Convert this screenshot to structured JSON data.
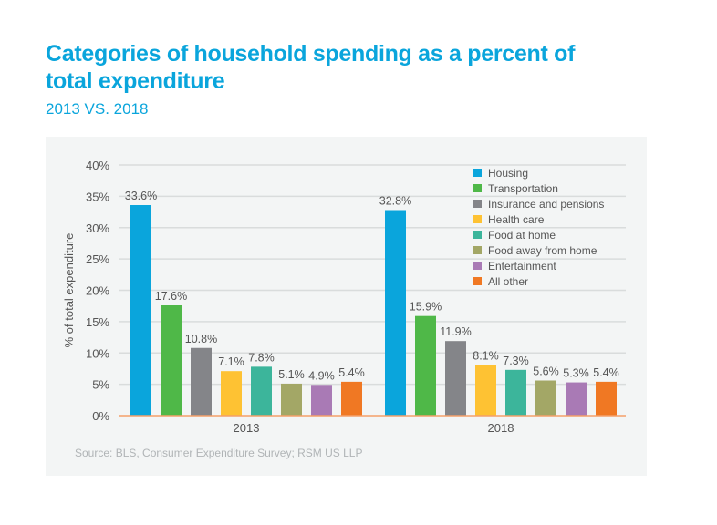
{
  "title": "Categories of household spending as a percent of total expenditure",
  "subtitle": "2013 VS. 2018",
  "source": "Source: BLS, Consumer Expenditure Survey; RSM US LLP",
  "chart_data": {
    "type": "bar",
    "title": "Categories of household spending as a percent of total expenditure",
    "subtitle": "2013 VS. 2018",
    "ylabel": "% of total expenditure",
    "xlabel": "",
    "ylim": [
      0,
      40
    ],
    "yticks": [
      "0%",
      "5%",
      "10%",
      "15%",
      "20%",
      "25%",
      "30%",
      "35%",
      "40%"
    ],
    "grid": true,
    "legend_position": "top-right",
    "categories": [
      "2013",
      "2018"
    ],
    "series": [
      {
        "name": "Housing",
        "color": "#0aa5dc",
        "values": [
          33.6,
          32.8
        ],
        "labels": [
          "33.6%",
          "32.8%"
        ]
      },
      {
        "name": "Transportation",
        "color": "#4fb848",
        "values": [
          17.6,
          15.9
        ],
        "labels": [
          "17.6%",
          "15.9%"
        ]
      },
      {
        "name": "Insurance and pensions",
        "color": "#848589",
        "values": [
          10.8,
          11.9
        ],
        "labels": [
          "10.8%",
          "11.9%"
        ]
      },
      {
        "name": "Health care",
        "color": "#fec233",
        "values": [
          7.1,
          8.1
        ],
        "labels": [
          "7.1%",
          "8.1%"
        ]
      },
      {
        "name": "Food at home",
        "color": "#3cb59b",
        "values": [
          7.8,
          7.3
        ],
        "labels": [
          "7.8%",
          "7.3%"
        ]
      },
      {
        "name": "Food away from home",
        "color": "#a3a766",
        "values": [
          5.1,
          5.6
        ],
        "labels": [
          "5.1%",
          "5.6%"
        ]
      },
      {
        "name": "Entertainment",
        "color": "#a97ab5",
        "values": [
          4.9,
          5.3
        ],
        "labels": [
          "4.9%",
          "5.3%"
        ]
      },
      {
        "name": "All other",
        "color": "#f07823",
        "values": [
          5.4,
          5.4
        ],
        "labels": [
          "5.4%",
          "5.4%"
        ]
      }
    ]
  }
}
